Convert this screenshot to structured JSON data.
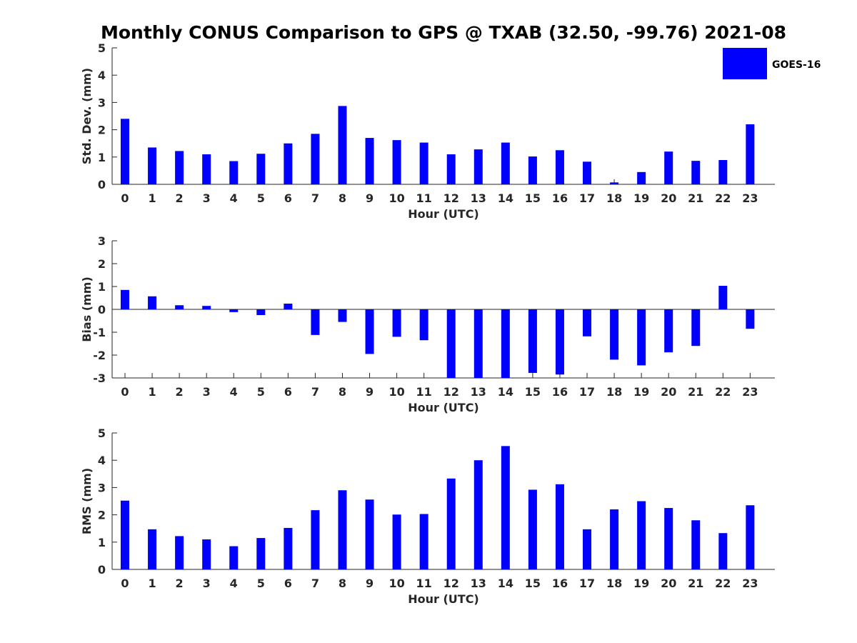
{
  "title": "Monthly CONUS Comparison to GPS @ TXAB (32.50, -99.76) 2021-08",
  "legend": {
    "label": "GOES-16",
    "color": "#0000ff",
    "placement": "top-right"
  },
  "bar_color": "#0000ff",
  "chart_data": [
    {
      "type": "bar",
      "categories": [
        "0",
        "1",
        "2",
        "3",
        "4",
        "5",
        "6",
        "7",
        "8",
        "9",
        "10",
        "11",
        "12",
        "13",
        "14",
        "15",
        "16",
        "17",
        "18",
        "19",
        "20",
        "21",
        "22",
        "23"
      ],
      "series": [
        {
          "name": "GOES-16",
          "values": [
            2.4,
            1.35,
            1.22,
            1.1,
            0.85,
            1.12,
            1.5,
            1.85,
            2.87,
            1.7,
            1.62,
            1.53,
            1.1,
            1.28,
            1.53,
            1.02,
            1.25,
            0.83,
            0.07,
            0.45,
            1.2,
            0.86,
            0.89,
            2.2
          ]
        }
      ],
      "xlabel": "Hour (UTC)",
      "ylabel": "Std. Dev. (mm)",
      "ylim": [
        0,
        5
      ],
      "yticks": [
        "0",
        "1",
        "2",
        "3",
        "4",
        "5"
      ],
      "grid": false
    },
    {
      "type": "bar",
      "categories": [
        "0",
        "1",
        "2",
        "3",
        "4",
        "5",
        "6",
        "7",
        "8",
        "9",
        "10",
        "11",
        "12",
        "13",
        "14",
        "15",
        "16",
        "17",
        "18",
        "19",
        "20",
        "21",
        "22",
        "23"
      ],
      "series": [
        {
          "name": "GOES-16",
          "values": [
            0.85,
            0.57,
            0.18,
            0.15,
            -0.12,
            -0.25,
            0.25,
            -1.12,
            -0.55,
            -1.95,
            -1.2,
            -1.35,
            -3.0,
            -3.0,
            -3.0,
            -2.78,
            -2.85,
            -1.18,
            -2.2,
            -2.45,
            -1.88,
            -1.6,
            1.03,
            -0.85
          ]
        }
      ],
      "xlabel": "Hour (UTC)",
      "ylabel": "Bias (mm)",
      "ylim": [
        -3,
        3
      ],
      "yticks": [
        "-3",
        "-2",
        "-1",
        "0",
        "1",
        "2",
        "3"
      ],
      "grid": false
    },
    {
      "type": "bar",
      "categories": [
        "0",
        "1",
        "2",
        "3",
        "4",
        "5",
        "6",
        "7",
        "8",
        "9",
        "10",
        "11",
        "12",
        "13",
        "14",
        "15",
        "16",
        "17",
        "18",
        "19",
        "20",
        "21",
        "22",
        "23"
      ],
      "series": [
        {
          "name": "GOES-16",
          "values": [
            2.52,
            1.47,
            1.22,
            1.1,
            0.85,
            1.15,
            1.52,
            2.17,
            2.9,
            2.56,
            2.01,
            2.03,
            3.33,
            4.0,
            4.52,
            2.92,
            3.12,
            1.47,
            2.2,
            2.5,
            2.25,
            1.8,
            1.33,
            2.35
          ]
        }
      ],
      "xlabel": "Hour (UTC)",
      "ylabel": "RMS (mm)",
      "ylim": [
        0,
        5
      ],
      "yticks": [
        "0",
        "1",
        "2",
        "3",
        "4",
        "5"
      ],
      "grid": false
    }
  ]
}
